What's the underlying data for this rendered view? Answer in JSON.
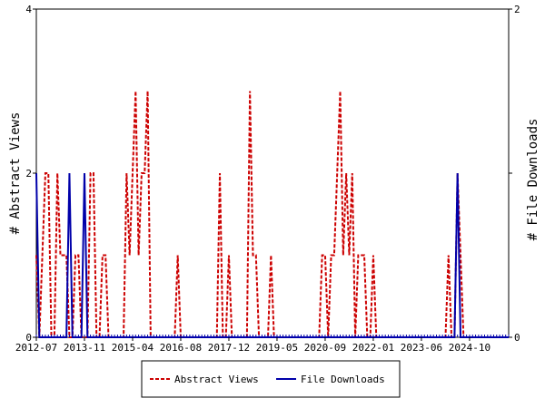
{
  "chart_data": {
    "type": "line",
    "x_start": "2012-07",
    "x_end": "2025-09",
    "x_tick_labels": [
      "2012-07",
      "2013-11",
      "2015-04",
      "2016-08",
      "2017-12",
      "2019-05",
      "2020-09",
      "2022-01",
      "2023-06",
      "2024-10"
    ],
    "ylabel_left": "# Abstract Views",
    "ylabel_right": "# File Downloads",
    "ylim_left": [
      0,
      4
    ],
    "ylim_right": [
      0,
      2
    ],
    "y_ticks_left": [
      0,
      2,
      4
    ],
    "y_ticks_right": [
      0,
      1,
      2
    ],
    "legend_placement": "bottom",
    "grid": false,
    "series": [
      {
        "name": "Abstract Views",
        "axis": "left",
        "color": "#cc0000",
        "style": "dashed",
        "values": [
          1,
          0,
          1,
          2,
          2,
          0,
          0,
          2,
          1,
          1,
          1,
          0,
          0,
          1,
          1,
          0,
          0,
          0,
          2,
          2,
          0,
          0,
          1,
          1,
          0,
          0,
          0,
          0,
          0,
          0,
          2,
          1,
          2,
          3,
          1,
          2,
          2,
          3,
          0,
          0,
          0,
          0,
          0,
          0,
          0,
          0,
          0,
          1,
          0,
          0,
          0,
          0,
          0,
          0,
          0,
          0,
          0,
          0,
          0,
          0,
          0,
          2,
          0,
          0,
          1,
          0,
          0,
          0,
          0,
          0,
          0,
          3,
          1,
          1,
          0,
          0,
          0,
          0,
          1,
          0,
          0,
          0,
          0,
          0,
          0,
          0,
          0,
          0,
          0,
          0,
          0,
          0,
          0,
          0,
          0,
          1,
          1,
          0,
          1,
          1,
          2,
          3,
          1,
          2,
          1,
          2,
          0,
          1,
          1,
          1,
          0,
          0,
          1,
          0,
          0,
          0,
          0,
          0,
          0,
          0,
          0,
          0,
          0,
          0,
          0,
          0,
          0,
          0,
          0,
          0,
          0,
          0,
          0,
          0,
          0,
          0,
          0,
          1,
          0,
          0,
          2,
          1,
          0,
          0,
          0,
          0,
          0,
          0,
          0,
          0,
          0,
          0,
          0,
          0,
          0,
          0,
          0,
          0
        ]
      },
      {
        "name": "File Downloads",
        "axis": "right",
        "color": "#0000aa",
        "style": "solid",
        "values": [
          1,
          0,
          0,
          0,
          0,
          0,
          0,
          0,
          0,
          0,
          0,
          1,
          0,
          0,
          0,
          0,
          1,
          0,
          0,
          0,
          0,
          0,
          0,
          0,
          0,
          0,
          0,
          0,
          0,
          0,
          0,
          0,
          0,
          0,
          0,
          0,
          0,
          0,
          0,
          0,
          0,
          0,
          0,
          0,
          0,
          0,
          0,
          0,
          0,
          0,
          0,
          0,
          0,
          0,
          0,
          0,
          0,
          0,
          0,
          0,
          0,
          0,
          0,
          0,
          0,
          0,
          0,
          0,
          0,
          0,
          0,
          0,
          0,
          0,
          0,
          0,
          0,
          0,
          0,
          0,
          0,
          0,
          0,
          0,
          0,
          0,
          0,
          0,
          0,
          0,
          0,
          0,
          0,
          0,
          0,
          0,
          0,
          0,
          0,
          0,
          0,
          0,
          0,
          0,
          0,
          0,
          0,
          0,
          0,
          0,
          0,
          0,
          0,
          0,
          0,
          0,
          0,
          0,
          0,
          0,
          0,
          0,
          0,
          0,
          0,
          0,
          0,
          0,
          0,
          0,
          0,
          0,
          0,
          0,
          0,
          0,
          0,
          0,
          0,
          0,
          1,
          0,
          0,
          0,
          0,
          0,
          0,
          0,
          0,
          0,
          0,
          0,
          0,
          0,
          0,
          0,
          0,
          0
        ]
      }
    ]
  }
}
